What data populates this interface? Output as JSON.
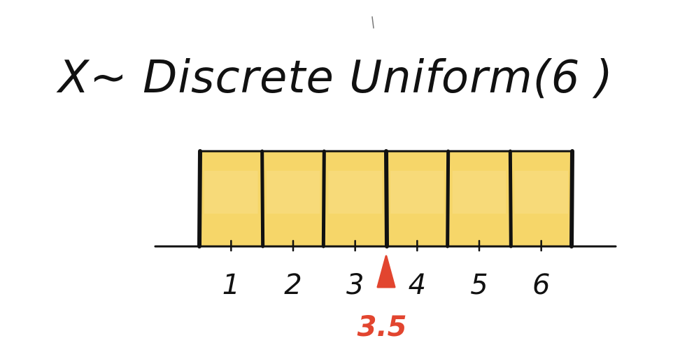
{
  "chart_data": {
    "type": "bar",
    "title": "X~ Discrete Uniform(6 )",
    "categories": [
      "1",
      "2",
      "3",
      "4",
      "5",
      "6"
    ],
    "values": [
      1,
      1,
      1,
      1,
      1,
      1
    ],
    "xlim": [
      0.5,
      6.5
    ],
    "grid": false,
    "legend": "none",
    "annotation": {
      "x": 3.5,
      "label": "3.5"
    },
    "colors": {
      "fill": "#f4cf4f",
      "fill_light": "#f8df86",
      "outline": "#111111",
      "marker": "#e2452f"
    }
  }
}
